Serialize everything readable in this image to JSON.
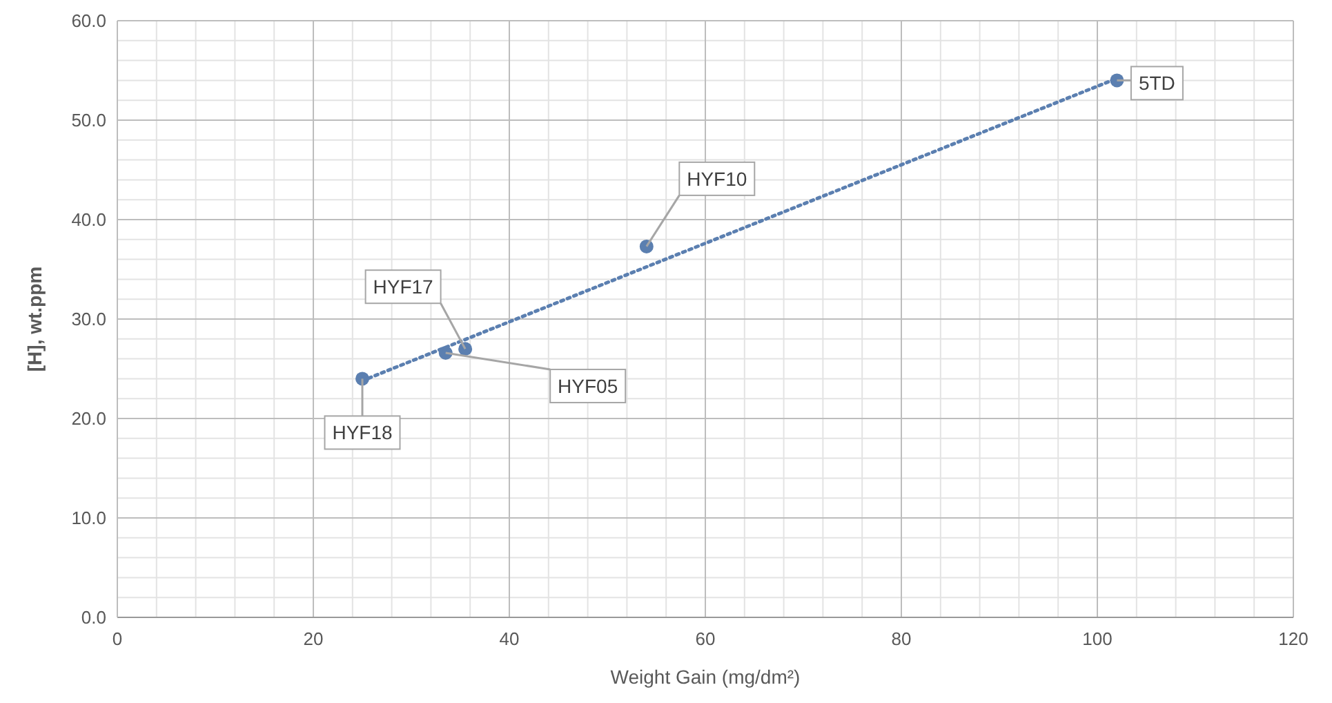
{
  "chart_data": {
    "type": "scatter",
    "xlabel": "Weight Gain (mg/dm²)",
    "ylabel": "[H], wt.ppm",
    "xlim": [
      0,
      120
    ],
    "xticks": [
      0,
      20,
      40,
      60,
      80,
      100,
      120
    ],
    "ylim": [
      0,
      60
    ],
    "yticks": [
      {
        "value": 0,
        "label": "0.0"
      },
      {
        "value": 10,
        "label": "10.0"
      },
      {
        "value": 20,
        "label": "20.0"
      },
      {
        "value": 30,
        "label": "30.0"
      },
      {
        "value": 40,
        "label": "40.0"
      },
      {
        "value": 50,
        "label": "50.0"
      },
      {
        "value": 60,
        "label": "60.0"
      }
    ],
    "grid": true,
    "marker": "circle",
    "series": [
      {
        "color": "#5b7fb0",
        "x": [
          25,
          33.5,
          35.5,
          54,
          102
        ],
        "values": [
          24.0,
          26.6,
          27.0,
          37.3,
          54.0
        ]
      },
      {
        "type": "line",
        "color": "#5b7fb0",
        "line_style": "dotted",
        "marker": "none",
        "x": [
          25,
          102
        ],
        "values": [
          23.8,
          54.2
        ]
      }
    ],
    "annotations": [
      {
        "text": "HYF18",
        "x": 25,
        "y": 24.0
      },
      {
        "text": "HYF05",
        "x": 33.5,
        "y": 26.6
      },
      {
        "text": "HYF17",
        "x": 35.5,
        "y": 27.0
      },
      {
        "text": "HYF10",
        "x": 54,
        "y": 37.3
      },
      {
        "text": "5TD",
        "x": 102,
        "y": 54.0
      }
    ]
  }
}
